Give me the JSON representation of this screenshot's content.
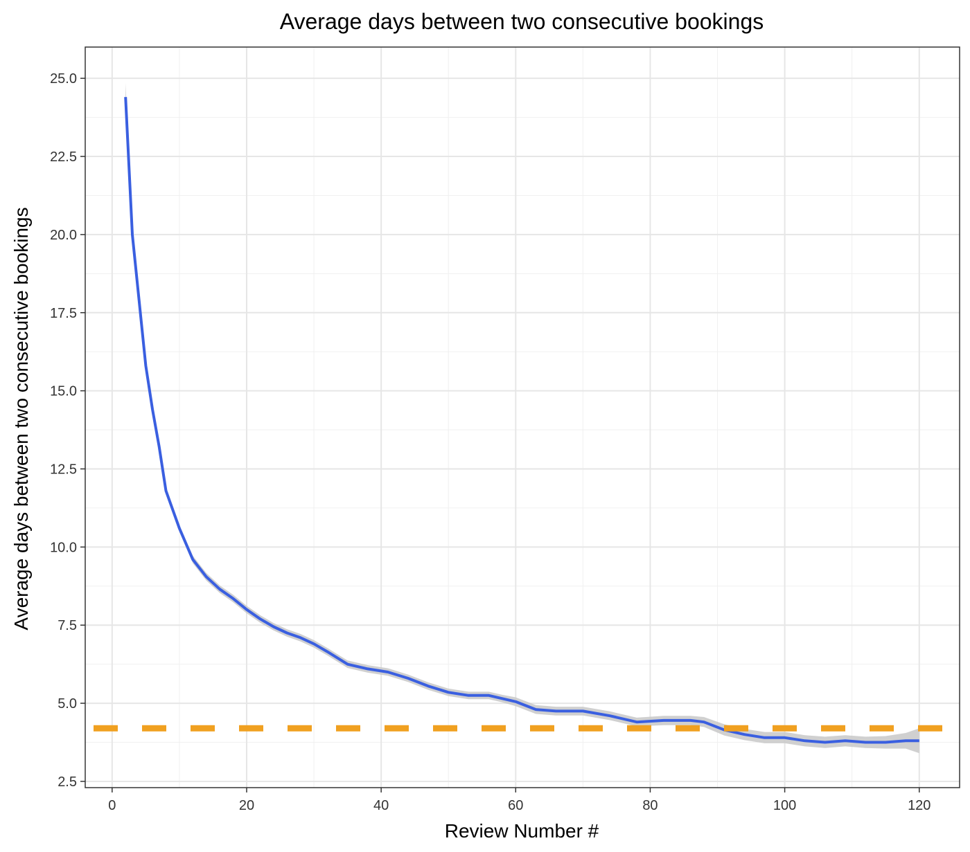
{
  "chart_data": {
    "type": "line",
    "title": "Average days between two consecutive bookings",
    "xlabel": "Review Number #",
    "ylabel": "Average days between two consecutive bookings",
    "xlim": [
      -4,
      126
    ],
    "ylim": [
      2.3,
      26.0
    ],
    "x_ticks": [
      0,
      20,
      40,
      60,
      80,
      100,
      120
    ],
    "y_ticks": [
      2.5,
      5.0,
      7.5,
      10.0,
      12.5,
      15.0,
      17.5,
      20.0,
      22.5,
      25.0
    ],
    "x_tick_labels": [
      "0",
      "20",
      "40",
      "60",
      "80",
      "100",
      "120"
    ],
    "y_tick_labels": [
      "2.5",
      "5.0",
      "7.5",
      "10.0",
      "12.5",
      "15.0",
      "17.5",
      "20.0",
      "22.5",
      "25.0"
    ],
    "grid": true,
    "series": [
      {
        "color": "#3a5fe0",
        "band_color": "#c8c8c8",
        "x": [
          2,
          3,
          4,
          5,
          6,
          7,
          8,
          10,
          12,
          14,
          16,
          18,
          20,
          22,
          24,
          26,
          28,
          30,
          32,
          35,
          38,
          41,
          44,
          47,
          50,
          53,
          56,
          58,
          60,
          63,
          66,
          70,
          74,
          78,
          82,
          86,
          88,
          91,
          94,
          97,
          100,
          103,
          106,
          109,
          112,
          115,
          118,
          120
        ],
        "values": [
          24.4,
          20.0,
          17.9,
          15.8,
          14.4,
          13.2,
          11.8,
          10.6,
          9.6,
          9.05,
          8.65,
          8.35,
          8.0,
          7.7,
          7.45,
          7.25,
          7.1,
          6.9,
          6.65,
          6.25,
          6.1,
          6.0,
          5.8,
          5.55,
          5.35,
          5.25,
          5.25,
          5.15,
          5.05,
          4.8,
          4.75,
          4.75,
          4.6,
          4.4,
          4.45,
          4.45,
          4.4,
          4.15,
          4.0,
          3.9,
          3.9,
          3.8,
          3.75,
          3.8,
          3.75,
          3.75,
          3.8,
          3.8
        ],
        "band_halfwidth": [
          0.45,
          0.3,
          0.2,
          0.15,
          0.12,
          0.1,
          0.1,
          0.1,
          0.12,
          0.12,
          0.12,
          0.12,
          0.12,
          0.12,
          0.12,
          0.12,
          0.12,
          0.12,
          0.12,
          0.12,
          0.12,
          0.12,
          0.12,
          0.12,
          0.12,
          0.12,
          0.12,
          0.12,
          0.14,
          0.14,
          0.14,
          0.14,
          0.14,
          0.14,
          0.15,
          0.15,
          0.16,
          0.18,
          0.18,
          0.18,
          0.18,
          0.18,
          0.18,
          0.18,
          0.18,
          0.2,
          0.25,
          0.4
        ]
      }
    ],
    "reference_line": {
      "value": 4.2,
      "style": "dashed",
      "color": "#f0a020"
    }
  }
}
